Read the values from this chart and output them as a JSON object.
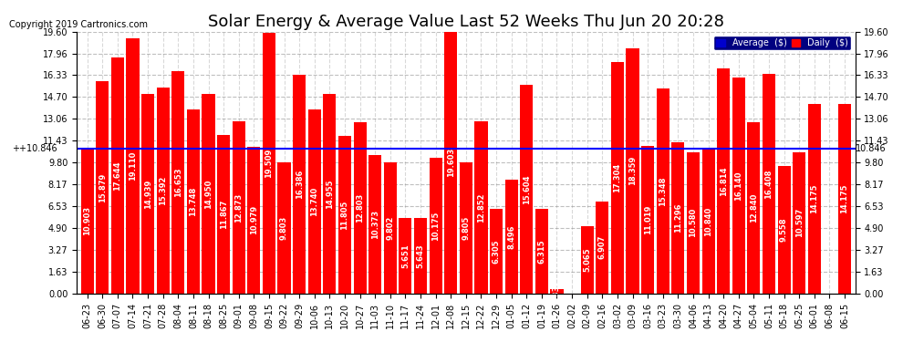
{
  "title": "Solar Energy & Average Value Last 52 Weeks Thu Jun 20 20:28",
  "copyright": "Copyright 2019 Cartronics.com",
  "average_line": 10.846,
  "ylim": [
    0,
    19.6
  ],
  "yticks": [
    0.0,
    1.63,
    3.27,
    4.9,
    6.53,
    8.17,
    9.8,
    11.43,
    13.06,
    14.7,
    16.33,
    17.96,
    19.6
  ],
  "bar_color": "#FF0000",
  "avg_line_color": "#0000FF",
  "background_color": "#FFFFFF",
  "plot_bg_color": "#FFFFFF",
  "legend_avg_color": "#0000CD",
  "legend_daily_color": "#FF0000",
  "categories": [
    "06-23",
    "06-30",
    "07-07",
    "07-14",
    "07-21",
    "07-28",
    "08-04",
    "08-11",
    "08-18",
    "08-25",
    "09-01",
    "09-08",
    "09-15",
    "09-22",
    "09-29",
    "10-06",
    "10-13",
    "10-20",
    "10-27",
    "11-03",
    "11-10",
    "11-17",
    "11-24",
    "12-01",
    "12-08",
    "12-15",
    "12-22",
    "12-29",
    "01-05",
    "01-12",
    "01-19",
    "01-26",
    "02-02",
    "02-09",
    "02-16",
    "03-02",
    "03-09",
    "03-16",
    "03-23",
    "03-30",
    "04-06",
    "04-13",
    "04-20",
    "04-27",
    "05-04",
    "05-11",
    "05-18",
    "05-25",
    "06-01",
    "06-08",
    "06-15"
  ],
  "values": [
    10.903,
    15.879,
    17.644,
    19.11,
    14.939,
    15.392,
    16.653,
    13.748,
    14.95,
    11.867,
    12.873,
    10.979,
    19.509,
    9.803,
    16.386,
    13.74,
    14.955,
    11.805,
    12.803,
    10.373,
    9.802,
    5.651,
    5.643,
    10.175,
    19.603,
    9.805,
    12.852,
    6.305,
    8.496,
    15.604,
    6.315,
    0.332,
    0.0,
    5.065,
    6.907,
    17.304,
    18.359,
    11.019,
    15.348,
    11.296,
    10.58,
    10.84,
    16.814,
    16.14,
    12.84,
    16.408,
    9.558,
    10.597,
    14.175,
    0.0,
    14.175
  ],
  "left_label": "+10.846",
  "right_label": "10.846",
  "title_fontsize": 13,
  "tick_fontsize": 7,
  "bar_label_fontsize": 6
}
